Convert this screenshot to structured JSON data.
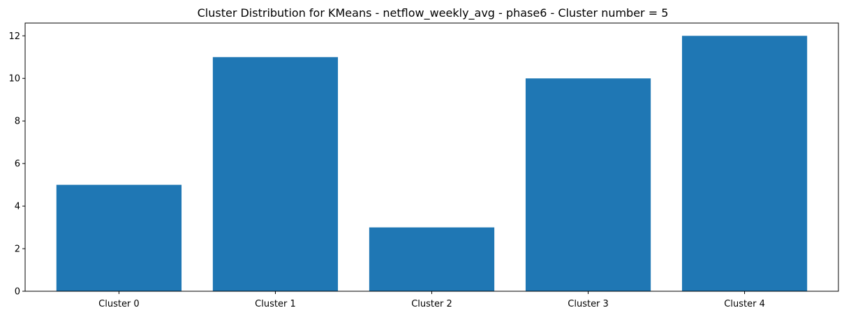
{
  "chart_data": {
    "type": "bar",
    "title": "Cluster Distribution for KMeans - netflow_weekly_avg - phase6 - Cluster number = 5",
    "xlabel": "",
    "ylabel": "",
    "categories": [
      "Cluster 0",
      "Cluster 1",
      "Cluster 2",
      "Cluster 3",
      "Cluster 4"
    ],
    "values": [
      5,
      11,
      3,
      10,
      12
    ],
    "ylim": [
      0,
      12.6
    ],
    "yticks": [
      0,
      2,
      4,
      6,
      8,
      10,
      12
    ],
    "grid": false,
    "legend": "none",
    "bar_color": "#1f77b4"
  }
}
